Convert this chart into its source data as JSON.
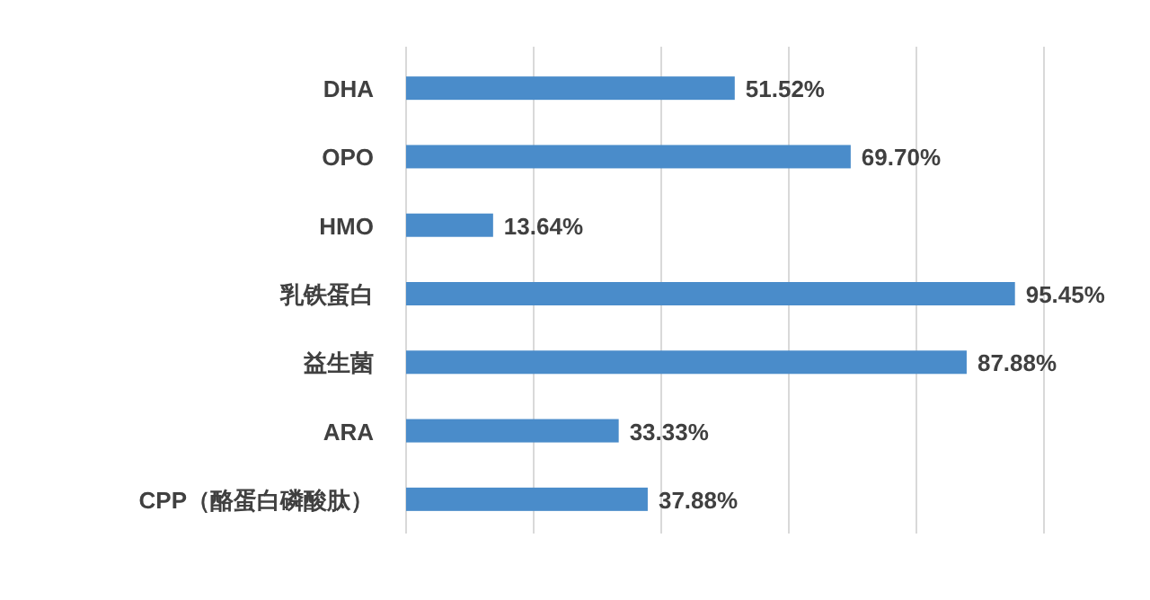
{
  "chart_data": {
    "type": "bar",
    "orientation": "horizontal",
    "categories": [
      "DHA",
      "OPO",
      "HMO",
      "乳铁蛋白",
      "益生菌",
      "ARA",
      "CPP（酪蛋白磷酸肽）"
    ],
    "values": [
      51.52,
      69.7,
      13.64,
      95.45,
      87.88,
      33.33,
      37.88
    ],
    "value_labels": [
      "51.52%",
      "69.70%",
      "13.64%",
      "95.45%",
      "87.88%",
      "33.33%",
      "37.88%"
    ],
    "color": "#4a8cca",
    "xlim": [
      0,
      100
    ],
    "xticks": [
      {
        "value": 0,
        "label": null
      },
      {
        "value": 20,
        "label": null
      },
      {
        "value": 40,
        "label": null
      },
      {
        "value": 60,
        "label": null
      },
      {
        "value": 80,
        "label": null
      },
      {
        "value": 100,
        "label": null
      }
    ],
    "grid": "x",
    "tick_labels": "y"
  }
}
